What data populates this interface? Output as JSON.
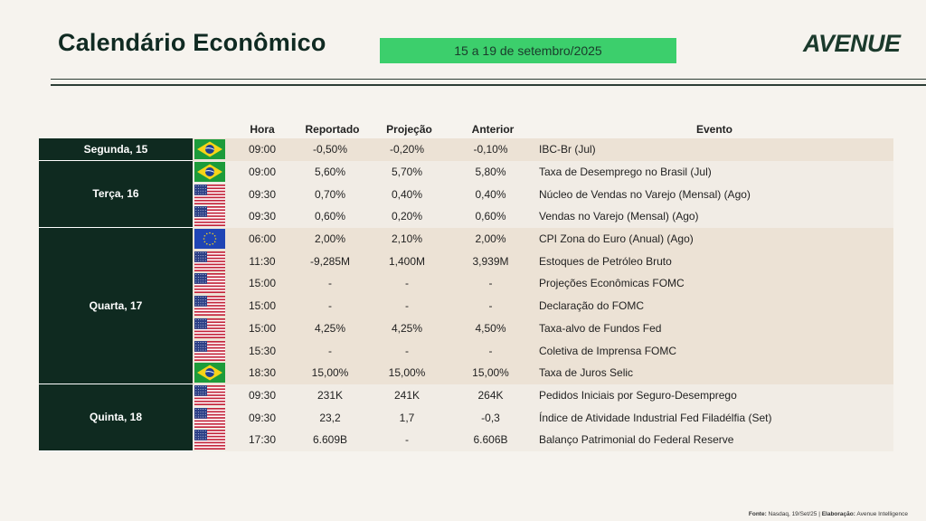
{
  "header": {
    "title": "Calendário Econômico",
    "date_range": "15 a 19 de setembro/2025",
    "logo": "AVENUE"
  },
  "columns": {
    "hora": "Hora",
    "reportado": "Reportado",
    "projecao": "Projeção",
    "anterior": "Anterior",
    "evento": "Evento"
  },
  "days": [
    {
      "label": "Segunda, 15",
      "rows": [
        {
          "flag": "brazil-flag-icon",
          "hora": "09:00",
          "reportado": "-0,50%",
          "projecao": "-0,20%",
          "anterior": "-0,10%",
          "evento": "IBC-Br (Jul)"
        }
      ]
    },
    {
      "label": "Terça, 16",
      "rows": [
        {
          "flag": "brazil-flag-icon",
          "hora": "09:00",
          "reportado": "5,60%",
          "projecao": "5,70%",
          "anterior": "5,80%",
          "evento": "Taxa de Desemprego no Brasil (Jul)"
        },
        {
          "flag": "usa-flag-icon",
          "hora": "09:30",
          "reportado": "0,70%",
          "projecao": "0,40%",
          "anterior": "0,40%",
          "evento": "Núcleo de Vendas no Varejo (Mensal) (Ago)"
        },
        {
          "flag": "usa-flag-icon",
          "hora": "09:30",
          "reportado": "0,60%",
          "projecao": "0,20%",
          "anterior": "0,60%",
          "evento": "Vendas no Varejo (Mensal) (Ago)"
        }
      ]
    },
    {
      "label": "Quarta, 17",
      "rows": [
        {
          "flag": "eu-flag-icon",
          "hora": "06:00",
          "reportado": "2,00%",
          "projecao": "2,10%",
          "anterior": "2,00%",
          "evento": "CPI Zona do Euro (Anual) (Ago)"
        },
        {
          "flag": "usa-flag-icon",
          "hora": "11:30",
          "reportado": "-9,285M",
          "projecao": "1,400M",
          "anterior": "3,939M",
          "evento": "Estoques de Petróleo Bruto"
        },
        {
          "flag": "usa-flag-icon",
          "hora": "15:00",
          "reportado": "-",
          "projecao": "-",
          "anterior": "-",
          "evento": "Projeções Econômicas FOMC"
        },
        {
          "flag": "usa-flag-icon",
          "hora": "15:00",
          "reportado": "-",
          "projecao": "-",
          "anterior": "-",
          "evento": "Declaração do FOMC"
        },
        {
          "flag": "usa-flag-icon",
          "hora": "15:00",
          "reportado": "4,25%",
          "projecao": "4,25%",
          "anterior": "4,50%",
          "evento": "Taxa-alvo de Fundos Fed"
        },
        {
          "flag": "usa-flag-icon",
          "hora": "15:30",
          "reportado": "-",
          "projecao": "-",
          "anterior": "-",
          "evento": "Coletiva de Imprensa FOMC"
        },
        {
          "flag": "brazil-flag-icon",
          "hora": "18:30",
          "reportado": "15,00%",
          "projecao": "15,00%",
          "anterior": "15,00%",
          "evento": "Taxa de Juros Selic"
        }
      ]
    },
    {
      "label": "Quinta, 18",
      "rows": [
        {
          "flag": "usa-flag-icon",
          "hora": "09:30",
          "reportado": "231K",
          "projecao": "241K",
          "anterior": "264K",
          "evento": "Pedidos Iniciais por Seguro-Desemprego"
        },
        {
          "flag": "usa-flag-icon",
          "hora": "09:30",
          "reportado": "23,2",
          "projecao": "1,7",
          "anterior": "-0,3",
          "evento": "Índice de Atividade Industrial Fed Filadélfia (Set)"
        },
        {
          "flag": "usa-flag-icon",
          "hora": "17:30",
          "reportado": "6.609B",
          "projecao": "-",
          "anterior": "6.606B",
          "evento": "Balanço Patrimonial do Federal Reserve"
        }
      ]
    }
  ],
  "footer": {
    "source_label": "Fonte:",
    "source_text": "Nasdaq, 19/Set/25 |",
    "elab_label": "Elaboração:",
    "elab_text": "Avenue Intelligence"
  },
  "colors": {
    "day_bg": "#0f2a20",
    "row_a": "#ece2d5",
    "row_b": "#f1ece5",
    "badge": "#3ccf6c"
  }
}
